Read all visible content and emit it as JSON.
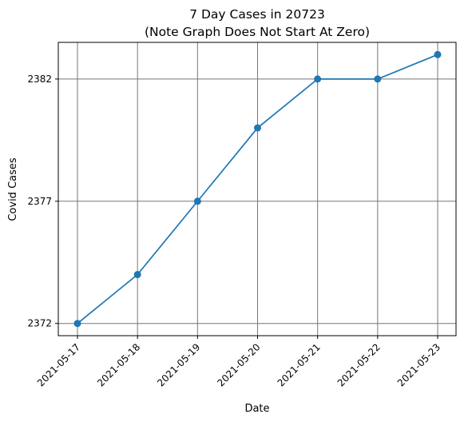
{
  "chart_data": {
    "type": "line",
    "title": "7 Day Cases in 20723",
    "subtitle": "(Note Graph Does Not Start At Zero)",
    "xlabel": "Date",
    "ylabel": "Covid Cases",
    "grid": true,
    "marker": "circle",
    "color": "#1f77b4",
    "categories": [
      "2021-05-17",
      "2021-05-18",
      "2021-05-19",
      "2021-05-20",
      "2021-05-21",
      "2021-05-22",
      "2021-05-23"
    ],
    "values": [
      2372,
      2374,
      2377,
      2380,
      2382,
      2382,
      2383
    ],
    "yticks": [
      2372,
      2377,
      2382
    ],
    "ylim": [
      2371.5,
      2383.5
    ]
  }
}
